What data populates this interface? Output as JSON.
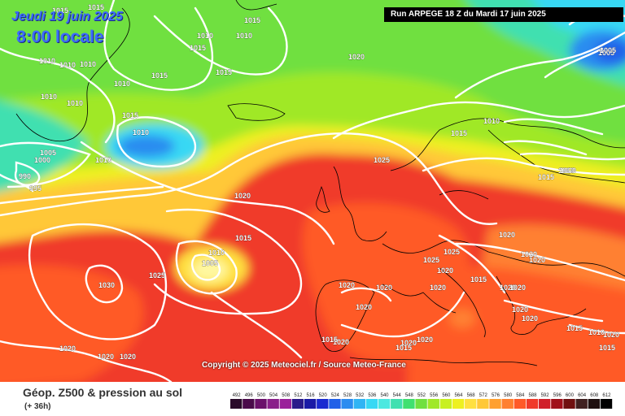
{
  "header": {
    "date_label": "Jeudi 19 juin 2025",
    "time_label": "8:00 locale",
    "run_label": "Run ARPEGE 18 Z du Mardi 17 juin 2025"
  },
  "copyright": "Copyright © 2025 Meteociel.fr / Source Meteo-France",
  "footer": {
    "title": "Géop. Z500 & pression au sol",
    "subtitle": "(+ 36h)"
  },
  "legend": {
    "values": [
      "492",
      "496",
      "500",
      "504",
      "508",
      "512",
      "516",
      "520",
      "524",
      "528",
      "532",
      "536",
      "540",
      "544",
      "548",
      "552",
      "556",
      "560",
      "564",
      "568",
      "572",
      "576",
      "580",
      "584",
      "588",
      "592",
      "596",
      "600",
      "604",
      "608",
      "612"
    ],
    "colors": [
      "#2a0a2a",
      "#4a0a4a",
      "#6a106a",
      "#8a208a",
      "#9a209a",
      "#2a1a8a",
      "#1a1aa6",
      "#1a2ad0",
      "#2060e8",
      "#2c8cf0",
      "#30b4f4",
      "#38d8f4",
      "#4ce8e0",
      "#40e0b0",
      "#40e070",
      "#70e040",
      "#a0e828",
      "#c8f020",
      "#eef020",
      "#ffe040",
      "#ffc838",
      "#ffa030",
      "#ff8030",
      "#ff5a28",
      "#f03a2a",
      "#d0202a",
      "#a0101a",
      "#701010",
      "#402020",
      "#201010",
      "#000000"
    ]
  },
  "isobar_labels": [
    {
      "t": "1015"
    },
    {
      "t": "1015"
    },
    {
      "t": "1010"
    },
    {
      "t": "1010"
    },
    {
      "t": "1015"
    },
    {
      "t": "1015"
    },
    {
      "t": "1015"
    },
    {
      "t": "1010"
    },
    {
      "t": "1010"
    },
    {
      "t": "1010"
    },
    {
      "t": "1010"
    },
    {
      "t": "1010"
    },
    {
      "t": "1010"
    },
    {
      "t": "1015"
    },
    {
      "t": "1015"
    },
    {
      "t": "1010"
    },
    {
      "t": "1010"
    },
    {
      "t": "1005"
    },
    {
      "t": "1000"
    },
    {
      "t": "990"
    },
    {
      "t": "995"
    },
    {
      "t": "1020"
    },
    {
      "t": "1015"
    },
    {
      "t": "1010"
    },
    {
      "t": "1005"
    },
    {
      "t": "1025"
    },
    {
      "t": "1030"
    },
    {
      "t": "1020"
    },
    {
      "t": "1020"
    },
    {
      "t": "1025"
    },
    {
      "t": "1015"
    },
    {
      "t": "1010"
    },
    {
      "t": "1005"
    },
    {
      "t": "1015"
    },
    {
      "t": "1010"
    },
    {
      "t": "1005"
    },
    {
      "t": "1000"
    },
    {
      "t": "1020"
    },
    {
      "t": "1025"
    },
    {
      "t": "1025"
    },
    {
      "t": "1020"
    },
    {
      "t": "1020"
    },
    {
      "t": "1020"
    },
    {
      "t": "1020"
    },
    {
      "t": "1020"
    },
    {
      "t": "1020"
    },
    {
      "t": "1020"
    },
    {
      "t": "1020"
    },
    {
      "t": "1020"
    },
    {
      "t": "1020"
    },
    {
      "t": "1020"
    },
    {
      "t": "1020"
    },
    {
      "t": "1020"
    },
    {
      "t": "1020"
    },
    {
      "t": "1015"
    },
    {
      "t": "1015"
    },
    {
      "t": "1020"
    },
    {
      "t": "1020"
    },
    {
      "t": "1015"
    },
    {
      "t": "1020"
    },
    {
      "t": "1015"
    },
    {
      "t": "1010"
    },
    {
      "t": "1015"
    }
  ],
  "colors": {
    "isobar": "#ffffff",
    "run_box_bg": "#000000",
    "date_text": "#3d6bff"
  }
}
